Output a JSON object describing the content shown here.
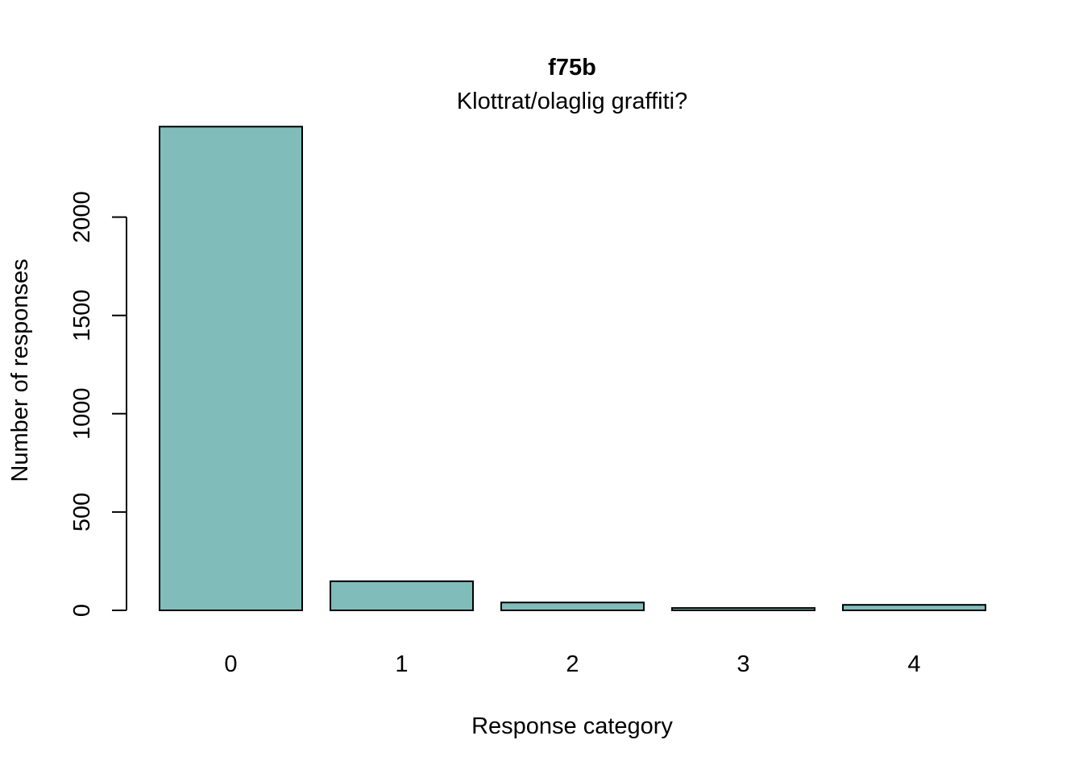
{
  "chart_data": {
    "type": "bar",
    "title": "f75b",
    "subtitle": "Klottrat/olaglig graffiti?",
    "xlabel": "Response category",
    "ylabel": "Number of responses",
    "categories": [
      "0",
      "1",
      "2",
      "3",
      "4"
    ],
    "values": [
      2460,
      148,
      40,
      12,
      28
    ],
    "ylim": [
      0,
      2460
    ],
    "yticks": [
      0,
      500,
      1000,
      1500,
      2000
    ],
    "bar_color": "#80BDBA",
    "grid": false,
    "legend": "none"
  }
}
